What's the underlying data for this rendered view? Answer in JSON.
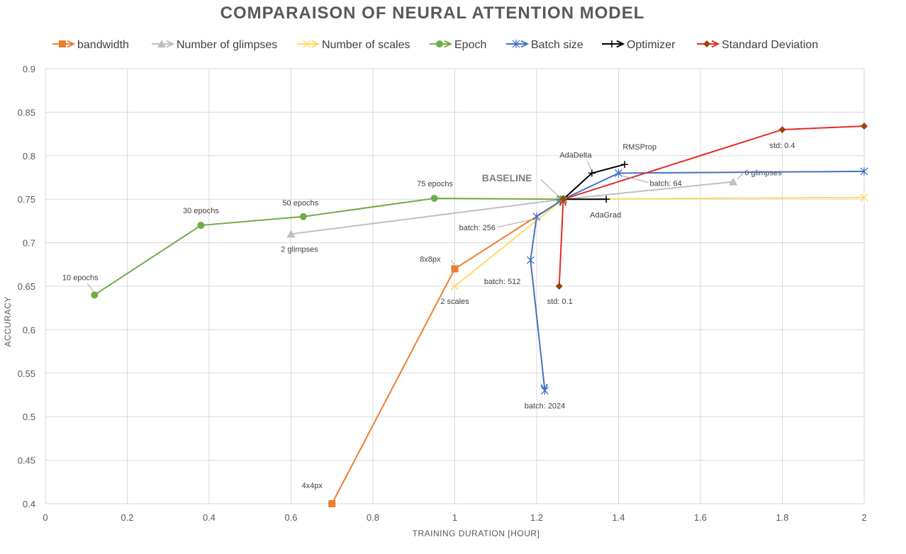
{
  "chart_data": {
    "type": "line",
    "title": "COMPARAISON OF NEURAL ATTENTION MODEL",
    "xlabel": "TRAINING  DURATION  [HOUR]",
    "ylabel": "ACCURACY",
    "xlim": [
      0,
      2
    ],
    "ylim": [
      0.4,
      0.9
    ],
    "xticks": [
      0,
      0.2,
      0.4,
      0.6,
      0.8,
      1,
      1.2,
      1.4,
      1.6,
      1.8,
      2
    ],
    "xtick_labels": [
      "0",
      "0.2",
      "0.4",
      "0.6",
      "0.8",
      "1",
      "1.2",
      "1.4",
      "1.6",
      "1.8",
      "2"
    ],
    "yticks": [
      0.4,
      0.45,
      0.5,
      0.55,
      0.6,
      0.65,
      0.7,
      0.75,
      0.8,
      0.85,
      0.9
    ],
    "ytick_labels": [
      "0.4",
      "0.45",
      "0.5",
      "0.55",
      "0.6",
      "0.65",
      "0.7",
      "0.75",
      "0.8",
      "0.85",
      "0.9"
    ],
    "grid": true,
    "legend_position": "top",
    "baseline": {
      "label": "BASELINE",
      "x": 1.265,
      "y": 0.75
    },
    "series": [
      {
        "name": "bandwidth",
        "color": "#ED7D31",
        "marker": "square",
        "points": [
          {
            "x": 0.7,
            "y": 0.4,
            "label": "4x4px"
          },
          {
            "x": 1.0,
            "y": 0.67,
            "label": "8x8px"
          },
          {
            "x": 1.265,
            "y": 0.75
          }
        ]
      },
      {
        "name": "Number of glimpses",
        "color": "#BFBFBF",
        "marker": "triangle",
        "points": [
          {
            "x": 0.6,
            "y": 0.71,
            "label": "2 glimpses"
          },
          {
            "x": 1.265,
            "y": 0.75
          },
          {
            "x": 1.68,
            "y": 0.77,
            "label": "6 glimpses"
          }
        ]
      },
      {
        "name": "Number of scales",
        "color": "#FFD966",
        "marker": "x",
        "points": [
          {
            "x": 1.0,
            "y": 0.65,
            "label": "2 scales"
          },
          {
            "x": 1.265,
            "y": 0.75
          },
          {
            "x": 2.0,
            "y": 0.752
          }
        ]
      },
      {
        "name": "Epoch",
        "color": "#70AD47",
        "marker": "circle",
        "points": [
          {
            "x": 0.12,
            "y": 0.64,
            "label": "10 epochs"
          },
          {
            "x": 0.38,
            "y": 0.72,
            "label": "30  epochs"
          },
          {
            "x": 0.63,
            "y": 0.73,
            "label": "50  epochs"
          },
          {
            "x": 0.95,
            "y": 0.751,
            "label": "75  epochs"
          },
          {
            "x": 1.265,
            "y": 0.75
          }
        ]
      },
      {
        "name": "Batch size",
        "color": "#4472C4",
        "marker": "star",
        "points": [
          {
            "x": 1.22,
            "y": 0.53,
            "label": "batch: 2024"
          },
          {
            "x": 1.185,
            "y": 0.68,
            "label": "batch: 512"
          },
          {
            "x": 1.2,
            "y": 0.73,
            "label": "batch: 256"
          },
          {
            "x": 1.265,
            "y": 0.75
          },
          {
            "x": 1.4,
            "y": 0.78,
            "label": "batch: 64"
          },
          {
            "x": 2.0,
            "y": 0.782
          }
        ]
      },
      {
        "name": "Optimizer",
        "color": "#000000",
        "marker": "plus",
        "points": [
          {
            "x": 1.265,
            "y": 0.75
          },
          {
            "x": 1.335,
            "y": 0.78,
            "label": "AdaDelta"
          },
          {
            "x": 1.415,
            "y": 0.79,
            "label": "RMSProp"
          }
        ],
        "extra_points": [
          {
            "x": 1.265,
            "y": 0.75
          },
          {
            "x": 1.37,
            "y": 0.75,
            "label": "AdaGrad"
          }
        ]
      },
      {
        "name": "Standard Deviation",
        "color": "#E32A2A",
        "marker": "diamond",
        "marker_color": "#A0420E",
        "points": [
          {
            "x": 1.255,
            "y": 0.65,
            "label": "std: 0.1"
          },
          {
            "x": 1.265,
            "y": 0.75
          },
          {
            "x": 1.8,
            "y": 0.83,
            "label": "std: 0.4"
          },
          {
            "x": 2.0,
            "y": 0.834
          }
        ]
      }
    ]
  }
}
